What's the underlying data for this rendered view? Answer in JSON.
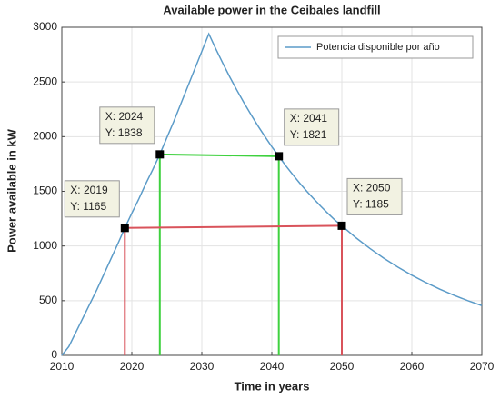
{
  "chart_data": {
    "type": "line",
    "title": "Available power in the Ceibales landfill",
    "xlabel": "Time in years",
    "ylabel": "Power available in kW",
    "x": [
      2010,
      2011,
      2012,
      2013,
      2014,
      2015,
      2016,
      2017,
      2018,
      2019,
      2020,
      2021,
      2022,
      2023,
      2024,
      2025,
      2026,
      2027,
      2028,
      2029,
      2030,
      2031,
      2032,
      2033,
      2034,
      2035,
      2036,
      2037,
      2038,
      2039,
      2040,
      2041,
      2042,
      2043,
      2044,
      2045,
      2046,
      2047,
      2048,
      2049,
      2050,
      2052,
      2054,
      2056,
      2058,
      2060,
      2062,
      2064,
      2066,
      2068,
      2070
    ],
    "series": [
      {
        "name": "Potencia disponible por año",
        "color": "#5b9bc8",
        "values": [
          0,
          80,
          210,
          340,
          470,
          600,
          740,
          880,
          1020,
          1165,
          1300,
          1430,
          1570,
          1700,
          1838,
          1990,
          2140,
          2300,
          2460,
          2620,
          2780,
          2940,
          2802,
          2671,
          2545,
          2426,
          2312,
          2204,
          2100,
          2002,
          1908,
          1821,
          1733,
          1652,
          1574,
          1500,
          1430,
          1363,
          1299,
          1238,
          1185,
          1076,
          978,
          888,
          807,
          733,
          666,
          605,
          550,
          500,
          455
        ]
      }
    ],
    "xlim": [
      2010,
      2070
    ],
    "xticks": [
      2010,
      2020,
      2030,
      2040,
      2050,
      2060,
      2070
    ],
    "ylim": [
      0,
      3000
    ],
    "yticks": [
      0,
      500,
      1000,
      1500,
      2000,
      2500,
      3000
    ],
    "grid": true,
    "legend": "top-right",
    "guides": [
      {
        "color": "#3fd13f",
        "tips": [
          {
            "x": 2024,
            "y": 1838,
            "labels": [
              "X: 2024",
              "Y: 1838"
            ]
          },
          {
            "x": 2041,
            "y": 1821,
            "labels": [
              "X: 2041",
              "Y: 1821"
            ]
          }
        ]
      },
      {
        "color": "#d9535b",
        "tips": [
          {
            "x": 2019,
            "y": 1165,
            "labels": [
              "X: 2019",
              "Y: 1165"
            ]
          },
          {
            "x": 2050,
            "y": 1185,
            "labels": [
              "X: 2050",
              "Y: 1185"
            ]
          }
        ]
      }
    ]
  }
}
